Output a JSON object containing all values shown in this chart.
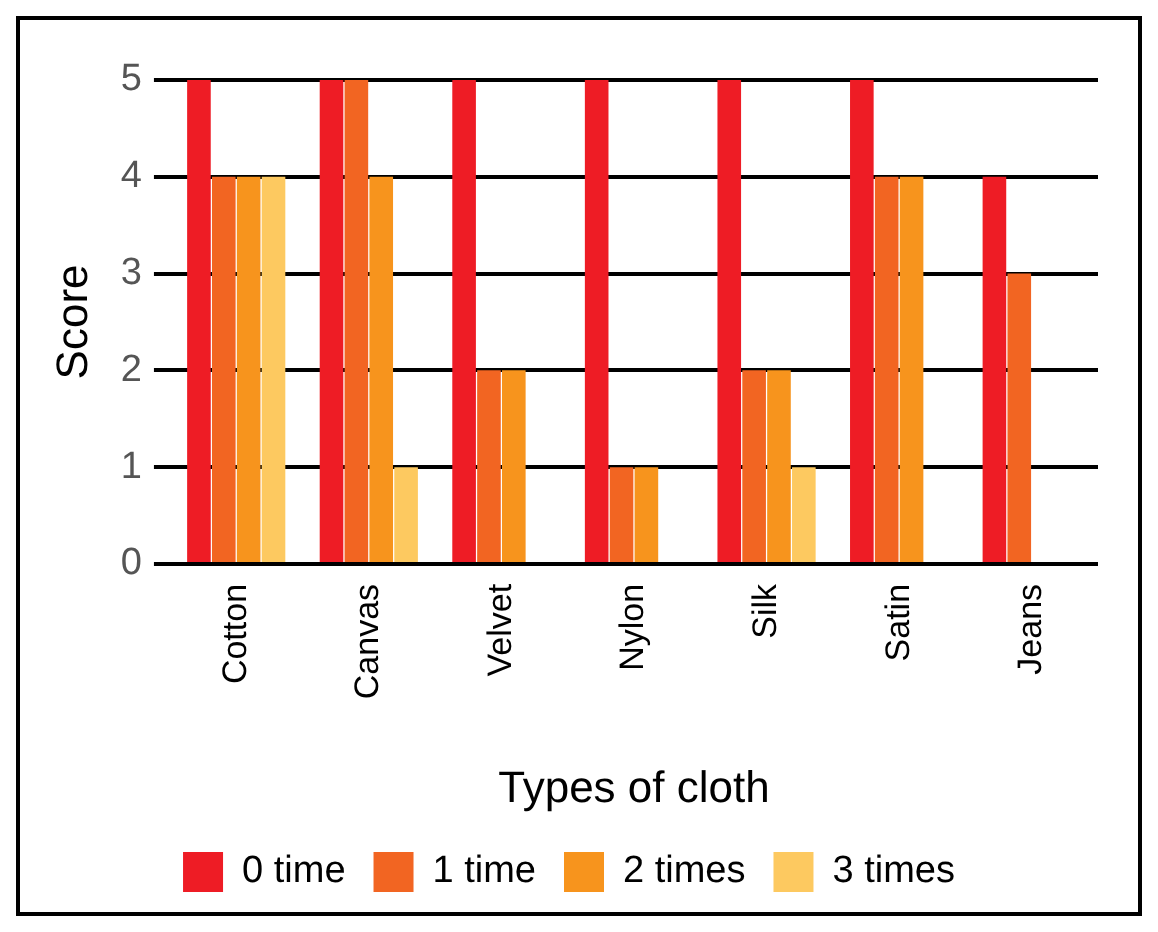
{
  "chart_data": {
    "type": "bar",
    "xlabel": "Types of cloth",
    "ylabel": "Score",
    "categories": [
      "Cotton",
      "Canvas",
      "Velvet",
      "Nylon",
      "Silk",
      "Satin",
      "Jeans"
    ],
    "series": [
      {
        "name": "0 time",
        "color": "#ee1c25",
        "values": [
          5,
          5,
          5,
          5,
          5,
          5,
          4
        ]
      },
      {
        "name": "1 time",
        "color": "#f26522",
        "values": [
          4,
          5,
          2,
          1,
          2,
          4,
          3
        ]
      },
      {
        "name": "2 times",
        "color": "#f7941d",
        "values": [
          4,
          4,
          2,
          1,
          2,
          4,
          0
        ]
      },
      {
        "name": "3 times",
        "color": "#fdc960",
        "values": [
          4,
          1,
          0,
          0,
          1,
          0,
          0
        ]
      }
    ],
    "ylim": [
      0,
      5
    ],
    "yticks": [
      0,
      1,
      2,
      3,
      4,
      5
    ],
    "grid": "y",
    "legend": "bottom"
  }
}
